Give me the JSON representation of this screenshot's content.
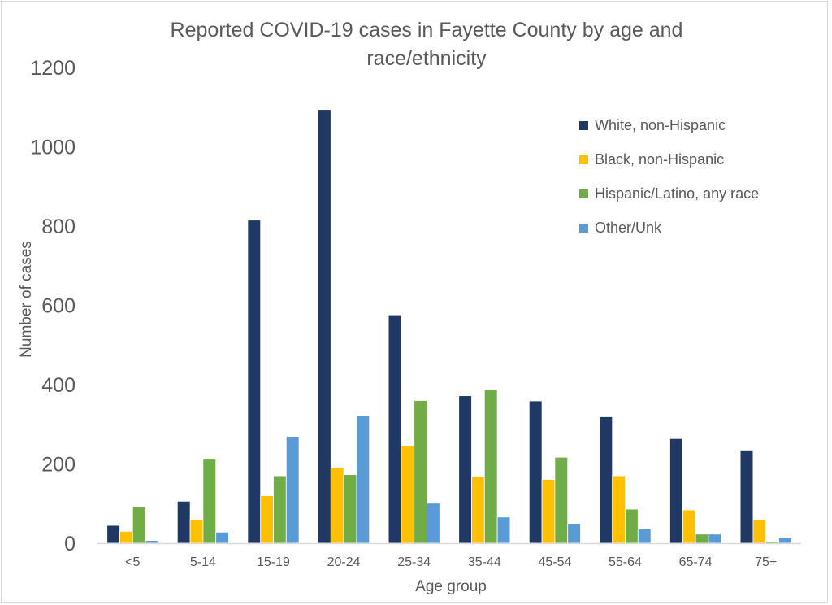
{
  "chart_data": {
    "type": "bar",
    "title": "Reported COVID-19 cases in Fayette County by age and race/ethnicity",
    "title_lines": [
      "Reported COVID-19 cases in Fayette County by age and",
      "race/ethnicity"
    ],
    "xlabel": "Age group",
    "ylabel": "Number of cases",
    "ylim": [
      0,
      1200
    ],
    "yticks": [
      0,
      200,
      400,
      600,
      800,
      1000,
      1200
    ],
    "grid": false,
    "legend_position": "top-right",
    "categories": [
      "<5",
      "5-14",
      "15-19",
      "20-24",
      "25-34",
      "35-44",
      "45-54",
      "55-64",
      "65-74",
      "75+"
    ],
    "series": [
      {
        "name": "White, non-Hispanic",
        "color": "#203864",
        "values": [
          45,
          106,
          815,
          1094,
          576,
          372,
          359,
          319,
          264,
          233
        ]
      },
      {
        "name": "Black, non-Hispanic",
        "color": "#FFC000",
        "values": [
          30,
          60,
          120,
          191,
          246,
          168,
          161,
          170,
          84,
          59
        ]
      },
      {
        "name": "Hispanic/Latino, any race",
        "color": "#70AD47",
        "values": [
          91,
          212,
          170,
          173,
          360,
          387,
          217,
          86,
          23,
          5
        ]
      },
      {
        "name": "Other/Unk",
        "color": "#5B9BD5",
        "values": [
          7,
          28,
          269,
          322,
          101,
          66,
          50,
          36,
          23,
          14
        ]
      }
    ]
  }
}
